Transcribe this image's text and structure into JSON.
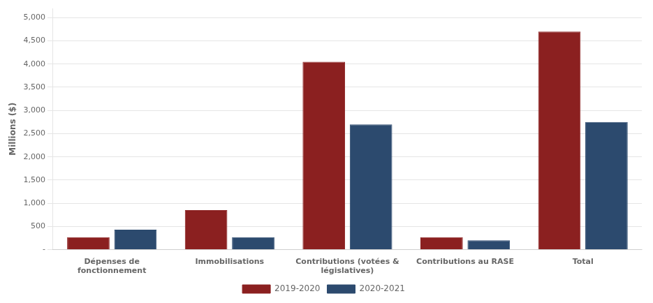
{
  "chart_data": {
    "type": "bar",
    "categories": [
      "Dépenses de\nfonctionnement",
      "Immobilisations",
      "Contributions (votées &\nlégislatives)",
      "Contributions au RASE",
      "Total"
    ],
    "series": [
      {
        "name": "2019-2020",
        "color": "#8B2020",
        "values": [
          270,
          850,
          4050,
          270,
          4700
        ]
      },
      {
        "name": "2020-2021",
        "color": "#2C4A6E",
        "values": [
          430,
          270,
          2700,
          200,
          2750
        ]
      }
    ],
    "ylabel": "Millions ($)",
    "ylim": [
      0,
      5200
    ],
    "yticks": [
      {
        "value": 0,
        "label": "-"
      },
      500,
      {
        "value": 1000,
        "label": "1,000"
      },
      {
        "value": 1500,
        "label": "1,500"
      },
      {
        "value": 2000,
        "label": "2,000"
      },
      {
        "value": 2500,
        "label": "2,500"
      },
      {
        "value": 3000,
        "label": "3,000"
      },
      {
        "value": 3500,
        "label": "3,500"
      },
      {
        "value": 4000,
        "label": "4,000"
      },
      {
        "value": 4500,
        "label": "4,500"
      },
      {
        "value": 5000,
        "label": "5,000"
      }
    ],
    "grid": true,
    "legend": "bottom"
  }
}
